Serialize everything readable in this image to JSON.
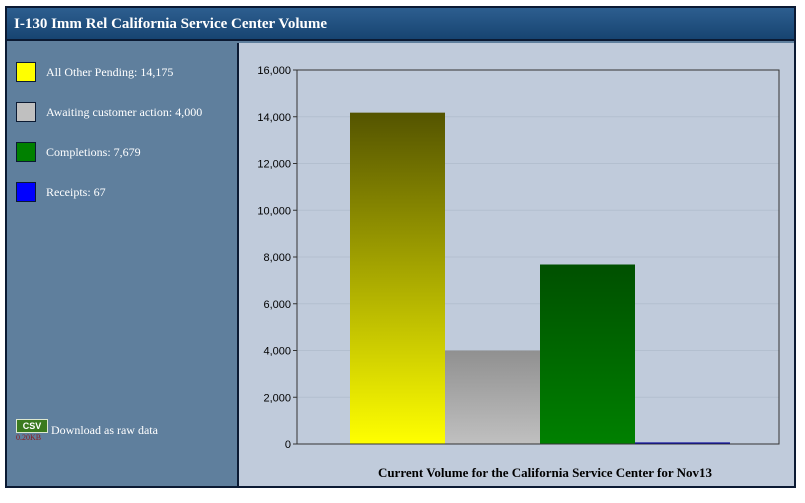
{
  "title": "I-130 Imm Rel California Service Center Volume",
  "legend": [
    {
      "label": "All Other Pending: 14,175",
      "color": "#ffff00"
    },
    {
      "label": "Awaiting customer action: 4,000",
      "color": "#c0c0c0"
    },
    {
      "label": "Completions: 7,679",
      "color": "#008000"
    },
    {
      "label": "Receipts: 67",
      "color": "#0000ff"
    }
  ],
  "download": {
    "badge": "CSV",
    "size": "0.20KB",
    "label": "Download as raw data"
  },
  "chart_data": {
    "type": "bar",
    "title": "Current Volume for the California Service Center for Nov13",
    "categories": [
      "All Other Pending",
      "Awaiting customer action",
      "Completions",
      "Receipts"
    ],
    "values": [
      14175,
      4000,
      7679,
      67
    ],
    "colors": [
      "#ffff00",
      "#c0c0c0",
      "#008000",
      "#0000ff"
    ],
    "ylim": [
      0,
      16000
    ],
    "yticks": [
      "0",
      "2,000",
      "4,000",
      "6,000",
      "8,000",
      "10,000",
      "12,000",
      "14,000",
      "16,000"
    ],
    "grid": true,
    "legend_position": "left"
  }
}
